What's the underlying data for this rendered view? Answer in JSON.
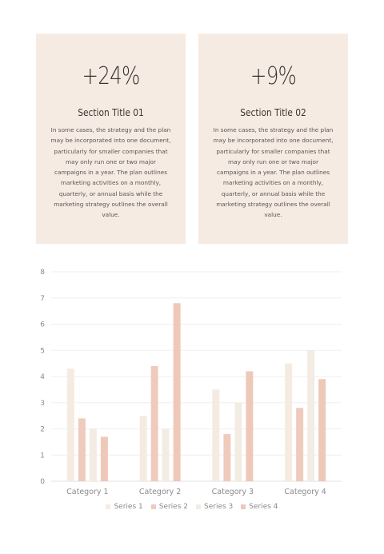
{
  "cards": [
    {
      "stat": "+24%",
      "title": "Section Title 01",
      "body": "In some cases, the strategy and the plan may be incorporated into one document, particularly for smaller companies that may only run one or two major campaigns in a year. The plan outlines marketing activities on a monthly, quarterly, or annual basis while the marketing strategy outlines the overall value."
    },
    {
      "stat": "+9%",
      "title": "Section Title 02",
      "body": "In some cases, the strategy and the plan may be incorporated into one document, particularly for smaller companies that may only run one or two major campaigns in a year. The plan outlines marketing activities on a monthly, quarterly, or annual basis while the marketing strategy outlines the overall value."
    }
  ],
  "chart_data": {
    "type": "bar",
    "categories": [
      "Category 1",
      "Category 2",
      "Category 3",
      "Category 4"
    ],
    "series": [
      {
        "name": "Series 1",
        "values": [
          4.3,
          2.5,
          3.5,
          4.5
        ],
        "color": "#f5ebe1"
      },
      {
        "name": "Series 2",
        "values": [
          2.4,
          4.4,
          1.8,
          2.8
        ],
        "color": "#efcbbd"
      },
      {
        "name": "Series 3",
        "values": [
          2.0,
          2.0,
          3.0,
          5.0
        ],
        "color": "#f3ece3"
      },
      {
        "name": "Series 4",
        "values": [
          1.7,
          6.8,
          4.2,
          3.9
        ],
        "color": "#eec8b9"
      }
    ],
    "yticks": [
      "0",
      "1",
      "2",
      "3",
      "4",
      "5",
      "6",
      "7",
      "8"
    ],
    "ylim": [
      0,
      8
    ],
    "grid": true,
    "legend": "bottom"
  }
}
